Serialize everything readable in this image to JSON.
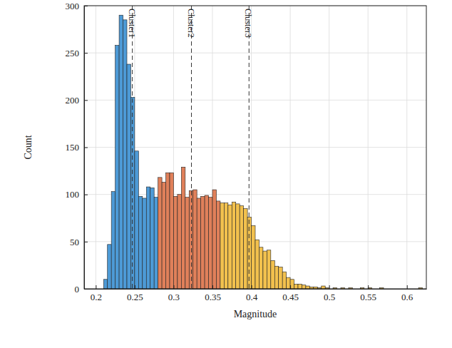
{
  "chart_data": {
    "type": "histogram",
    "x_label": "Magnitude",
    "y_label": "Count",
    "bins": [
      0.21,
      0.215,
      0.22,
      0.225,
      0.23,
      0.235,
      0.24,
      0.245,
      0.25,
      0.255,
      0.26,
      0.265,
      0.27,
      0.275,
      0.28,
      0.285,
      0.29,
      0.295,
      0.3,
      0.305,
      0.31,
      0.315,
      0.32,
      0.325,
      0.33,
      0.335,
      0.34,
      0.345,
      0.35,
      0.355,
      0.36,
      0.365,
      0.37,
      0.375,
      0.38,
      0.385,
      0.39,
      0.395,
      0.4,
      0.405,
      0.41,
      0.415,
      0.42,
      0.425,
      0.43,
      0.435,
      0.44,
      0.445,
      0.45,
      0.455,
      0.46,
      0.465,
      0.47,
      0.475,
      0.48,
      0.485,
      0.49,
      0.495,
      0.5,
      0.505,
      0.51,
      0.515,
      0.52,
      0.525,
      0.53,
      0.535,
      0.54,
      0.545,
      0.55,
      0.555,
      0.56,
      0.565,
      0.57,
      0.575,
      0.58,
      0.585,
      0.59,
      0.595,
      0.6,
      0.605,
      0.61,
      0.615,
      0.62
    ],
    "values": [
      10,
      47,
      103,
      258,
      290,
      285,
      238,
      203,
      146,
      98,
      96,
      108,
      107,
      97,
      118,
      113,
      123,
      123,
      98,
      100,
      129,
      97,
      104,
      105,
      96,
      98,
      99,
      97,
      105,
      93,
      91,
      91,
      89,
      92,
      90,
      88,
      85,
      76,
      67,
      52,
      44,
      40,
      41,
      30,
      24,
      23,
      18,
      12,
      10,
      5,
      5,
      4,
      3,
      2,
      2,
      1,
      3,
      1,
      0,
      1,
      0,
      1,
      0,
      1,
      0,
      0,
      1,
      0,
      1,
      0,
      0,
      1,
      0,
      0,
      0,
      0,
      0,
      0,
      0,
      0,
      0,
      1
    ],
    "colors": [
      "#4d9ad6",
      "#4d9ad6",
      "#4d9ad6",
      "#4d9ad6",
      "#4d9ad6",
      "#4d9ad6",
      "#4d9ad6",
      "#4d9ad6",
      "#4d9ad6",
      "#4d9ad6",
      "#4d9ad6",
      "#4d9ad6",
      "#4d9ad6",
      "#4d9ad6",
      "#e0805a",
      "#e0805a",
      "#e0805a",
      "#e0805a",
      "#e0805a",
      "#e0805a",
      "#e0805a",
      "#e0805a",
      "#e0805a",
      "#e0805a",
      "#e0805a",
      "#e0805a",
      "#e0805a",
      "#e0805a",
      "#e0805a",
      "#e0805a",
      "#f2c14e",
      "#f2c14e",
      "#f2c14e",
      "#f2c14e",
      "#f2c14e",
      "#f2c14e",
      "#f2c14e",
      "#f2c14e",
      "#f2c14e",
      "#f2c14e",
      "#f2c14e",
      "#f2c14e",
      "#f2c14e",
      "#f2c14e",
      "#f2c14e",
      "#f2c14e",
      "#f2c14e",
      "#f2c14e",
      "#f2c14e",
      "#f2c14e",
      "#f2c14e",
      "#f2c14e",
      "#f2c14e",
      "#f2c14e",
      "#f2c14e",
      "#f2c14e",
      "#f2c14e",
      "#f2c14e",
      "#f2c14e",
      "#f2c14e",
      "#f2c14e",
      "#f2c14e",
      "#f2c14e",
      "#f2c14e",
      "#f2c14e",
      "#f2c14e",
      "#f2c14e",
      "#f2c14e",
      "#f2c14e",
      "#f2c14e",
      "#f2c14e",
      "#f2c14e",
      "#f2c14e",
      "#f2c14e",
      "#f2c14e",
      "#f2c14e",
      "#f2c14e",
      "#f2c14e",
      "#f2c14e",
      "#f2c14e",
      "#f2c14e",
      "#f2c14e"
    ],
    "annotations": [
      {
        "x": 0.247,
        "label": "Cluster1"
      },
      {
        "x": 0.323,
        "label": "Cluster2"
      },
      {
        "x": 0.397,
        "label": "Cluster3"
      }
    ],
    "xlim": [
      0.185,
      0.625
    ],
    "xticks": [
      0.2,
      0.25,
      0.3,
      0.35,
      0.4,
      0.45,
      0.5,
      0.55,
      0.6
    ],
    "ylim": [
      0,
      300
    ],
    "yticks": [
      0,
      50,
      100,
      150,
      200,
      250,
      300
    ],
    "grid": true
  }
}
